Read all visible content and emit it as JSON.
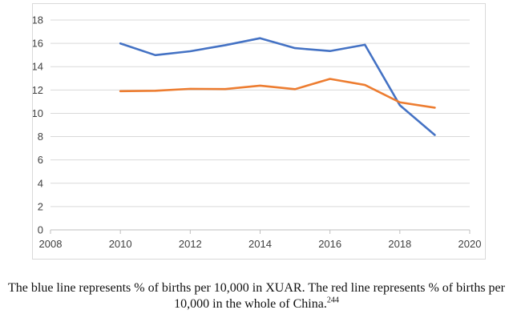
{
  "chart_data": {
    "type": "line",
    "x_ticks": [
      2008,
      2010,
      2012,
      2014,
      2016,
      2018,
      2020
    ],
    "y_ticks": [
      0,
      2,
      4,
      6,
      8,
      10,
      12,
      14,
      16,
      18
    ],
    "xlim": [
      2008,
      2020
    ],
    "ylim": [
      0,
      18
    ],
    "grid": "horizontal",
    "series": [
      {
        "color": "#4472c4",
        "x": [
          2010,
          2011,
          2012,
          2013,
          2014,
          2015,
          2016,
          2017,
          2018,
          2019
        ],
        "values": [
          15.99,
          14.99,
          15.32,
          15.84,
          16.44,
          15.59,
          15.34,
          15.88,
          10.69,
          8.14
        ]
      },
      {
        "color": "#ed7d31",
        "x": [
          2010,
          2011,
          2012,
          2013,
          2014,
          2015,
          2016,
          2017,
          2018,
          2019
        ],
        "values": [
          11.9,
          11.93,
          12.1,
          12.08,
          12.37,
          12.07,
          12.95,
          12.43,
          10.94,
          10.48
        ]
      }
    ]
  },
  "caption": {
    "text": "The blue line represents % of births per 10,000 in XUAR. The red line represents % of births per 10,000 in the whole of China.",
    "footnote": "244"
  }
}
